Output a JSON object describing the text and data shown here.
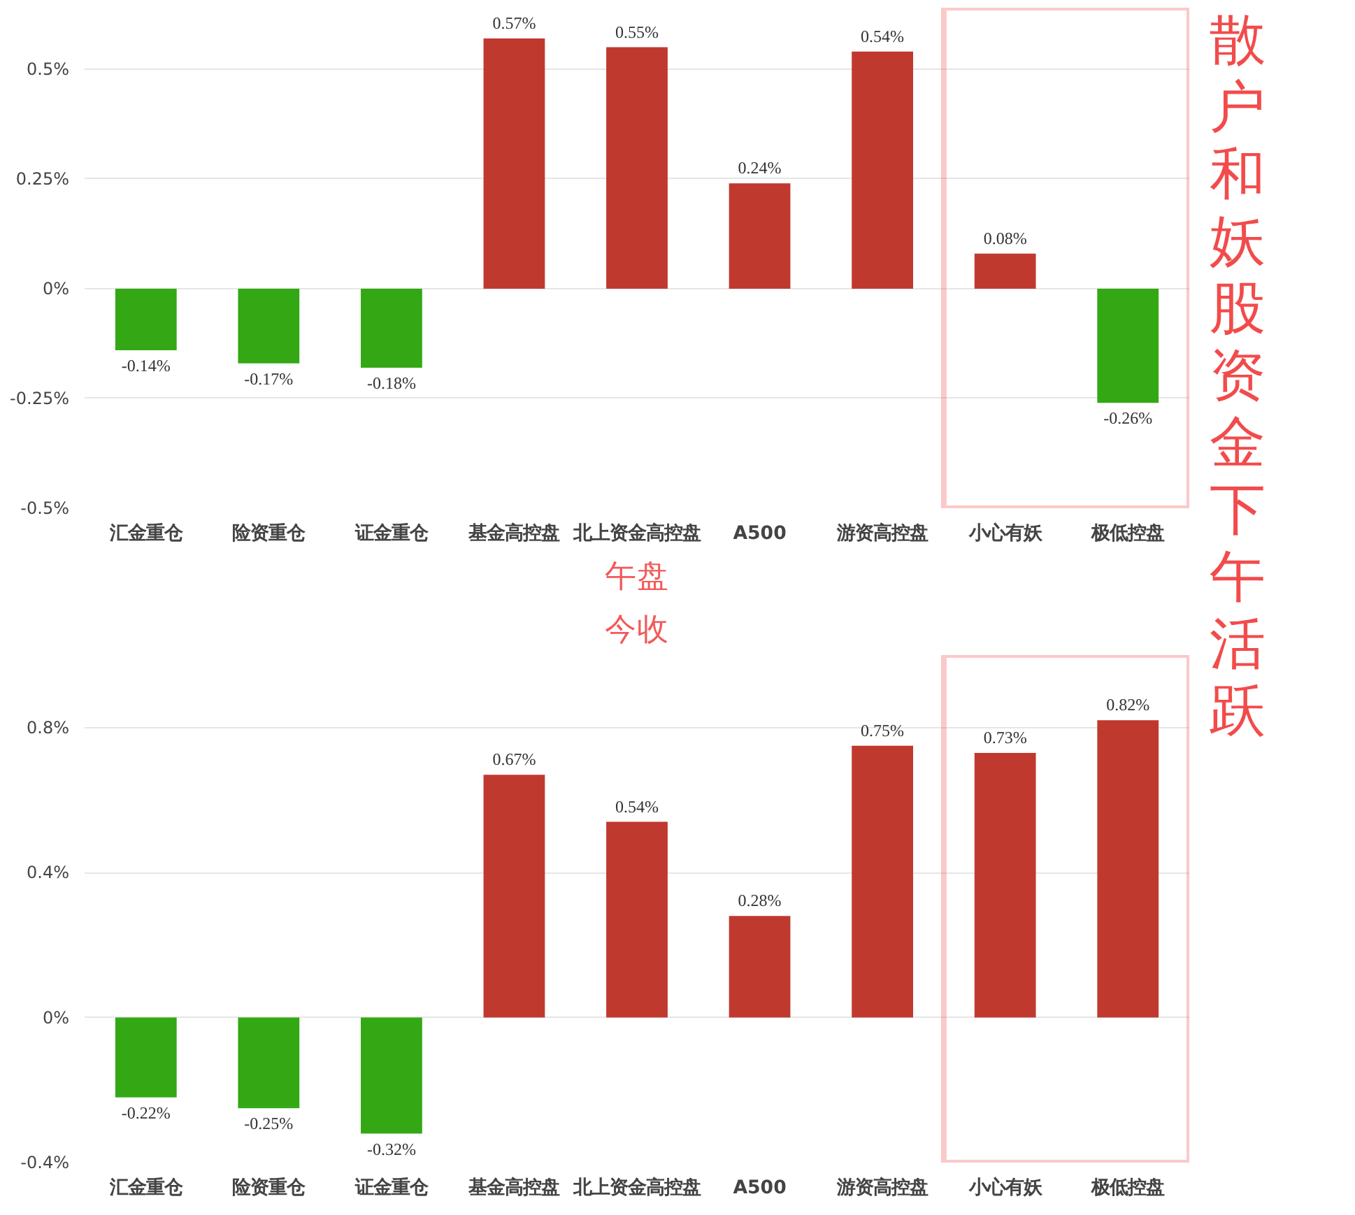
{
  "chart_data": [
    {
      "type": "bar",
      "title": "午盘",
      "categories": [
        "汇金重仓",
        "险资重仓",
        "证金重仓",
        "基金高控盘",
        "北上资金高控盘",
        "A500",
        "游资高控盘",
        "小心有妖",
        "极低控盘"
      ],
      "values": [
        -0.14,
        -0.17,
        -0.18,
        0.57,
        0.55,
        0.24,
        0.54,
        0.08,
        -0.26
      ],
      "colors": [
        "#33a814",
        "#33a814",
        "#33a814",
        "#c0392f",
        "#c0392f",
        "#c0392f",
        "#c0392f",
        "#c0392f",
        "#33a814"
      ],
      "value_labels": [
        "-0.14%",
        "-0.17%",
        "-0.18%",
        "0.57%",
        "0.55%",
        "0.24%",
        "0.54%",
        "0.08%",
        "-0.26%"
      ],
      "ylim": [
        -0.5,
        0.64
      ],
      "yticks": [
        {
          "value": -0.5,
          "label": "-0.5%"
        },
        {
          "value": -0.25,
          "label": "-0.25%"
        },
        {
          "value": 0,
          "label": "0%"
        },
        {
          "value": 0.25,
          "label": "0.25%"
        },
        {
          "value": 0.5,
          "label": "0.5%"
        }
      ],
      "grid": "y",
      "annotations": [
        "散户和妖股资金下午活跃"
      ]
    },
    {
      "type": "bar",
      "title": "今收",
      "categories": [
        "汇金重仓",
        "险资重仓",
        "证金重仓",
        "基金高控盘",
        "北上资金高控盘",
        "A500",
        "游资高控盘",
        "小心有妖",
        "极低控盘"
      ],
      "values": [
        -0.22,
        -0.25,
        -0.32,
        0.67,
        0.54,
        0.28,
        0.75,
        0.73,
        0.82
      ],
      "colors": [
        "#33a814",
        "#33a814",
        "#33a814",
        "#c0392f",
        "#c0392f",
        "#c0392f",
        "#c0392f",
        "#c0392f",
        "#c0392f"
      ],
      "value_labels": [
        "-0.22%",
        "-0.25%",
        "-0.32%",
        "0.67%",
        "0.54%",
        "0.28%",
        "0.75%",
        "0.73%",
        "0.82%"
      ],
      "ylim": [
        -0.4,
        1.0
      ],
      "yticks": [
        {
          "value": -0.4,
          "label": "-0.4%"
        },
        {
          "value": 0,
          "label": "0%"
        },
        {
          "value": 0.4,
          "label": "0.4%"
        },
        {
          "value": 0.8,
          "label": "0.8%"
        }
      ],
      "grid": "y"
    }
  ]
}
